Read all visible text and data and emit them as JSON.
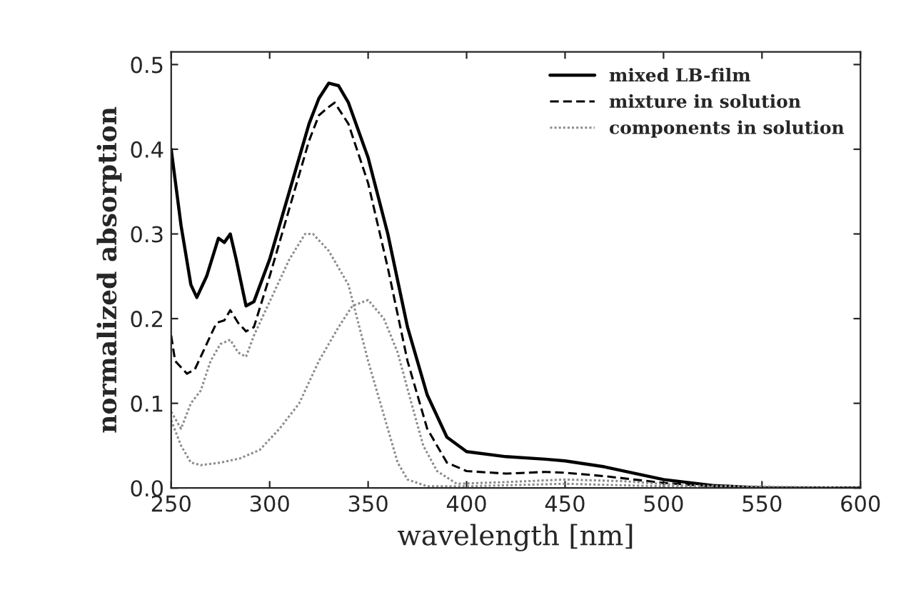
{
  "chart_data": {
    "type": "line",
    "xlabel": "wavelength [nm]",
    "ylabel": "normalized absorption",
    "xlim": [
      250,
      600
    ],
    "ylim": [
      0,
      0.515
    ],
    "xticks": [
      250,
      300,
      350,
      400,
      450,
      500,
      550,
      600
    ],
    "yticks": [
      {
        "value": 0,
        "label": "0.0"
      },
      {
        "value": 0.1,
        "label": "0.1"
      },
      {
        "value": 0.2,
        "label": "0.2"
      },
      {
        "value": 0.3,
        "label": "0.3"
      },
      {
        "value": 0.4,
        "label": "0.4"
      },
      {
        "value": 0.5,
        "label": "0.5"
      }
    ],
    "grid": false,
    "legend": "top right",
    "marker": "none",
    "series": [
      {
        "name": "mixed LB-film",
        "color": "#000000",
        "line_style": "solid",
        "x": [
          250,
          255,
          260,
          263,
          268,
          274,
          277,
          280,
          283,
          288,
          292,
          300,
          310,
          320,
          325,
          330,
          335,
          340,
          350,
          360,
          370,
          380,
          390,
          400,
          420,
          440,
          450,
          470,
          500,
          525,
          550,
          600
        ],
        "values": [
          0.4,
          0.31,
          0.24,
          0.225,
          0.25,
          0.295,
          0.29,
          0.3,
          0.27,
          0.215,
          0.22,
          0.27,
          0.35,
          0.43,
          0.46,
          0.478,
          0.475,
          0.455,
          0.39,
          0.3,
          0.19,
          0.11,
          0.06,
          0.043,
          0.037,
          0.034,
          0.032,
          0.025,
          0.01,
          0.003,
          0.0,
          0.0
        ]
      },
      {
        "name": "mixture in solution",
        "color": "#000000",
        "line_style": "dashed",
        "x": [
          250,
          252,
          258,
          262,
          268,
          273,
          277,
          280,
          284,
          288,
          292,
          300,
          310,
          320,
          325,
          330,
          333,
          340,
          350,
          360,
          370,
          380,
          390,
          400,
          420,
          440,
          450,
          470,
          500,
          530,
          600
        ],
        "values": [
          0.18,
          0.15,
          0.135,
          0.14,
          0.17,
          0.195,
          0.198,
          0.21,
          0.195,
          0.185,
          0.19,
          0.25,
          0.33,
          0.41,
          0.44,
          0.45,
          0.455,
          0.43,
          0.36,
          0.26,
          0.15,
          0.07,
          0.03,
          0.02,
          0.017,
          0.019,
          0.018,
          0.014,
          0.006,
          0.001,
          0.0
        ]
      },
      {
        "name": "components in solution",
        "color": "#8c8c8c",
        "line_style": "dotted",
        "x": [
          250,
          255,
          260,
          265,
          270,
          275,
          280,
          284,
          288,
          292,
          300,
          310,
          318,
          322,
          330,
          340,
          350,
          360,
          365,
          370,
          380,
          400,
          450,
          500,
          600
        ],
        "values": [
          0.09,
          0.07,
          0.1,
          0.115,
          0.15,
          0.17,
          0.175,
          0.16,
          0.155,
          0.18,
          0.22,
          0.27,
          0.3,
          0.3,
          0.28,
          0.24,
          0.15,
          0.07,
          0.03,
          0.01,
          0.002,
          0.002,
          0.005,
          0.002,
          0.0
        ]
      },
      {
        "color": "#8c8c8c",
        "line_style": "dotted",
        "x": [
          250,
          255,
          260,
          265,
          275,
          285,
          295,
          305,
          315,
          325,
          335,
          342,
          350,
          358,
          365,
          372,
          378,
          385,
          395,
          420,
          450,
          480,
          510,
          600
        ],
        "values": [
          0.08,
          0.05,
          0.03,
          0.027,
          0.03,
          0.035,
          0.045,
          0.07,
          0.1,
          0.15,
          0.19,
          0.215,
          0.222,
          0.2,
          0.16,
          0.1,
          0.05,
          0.02,
          0.005,
          0.007,
          0.01,
          0.008,
          0.003,
          0.0
        ]
      }
    ]
  }
}
